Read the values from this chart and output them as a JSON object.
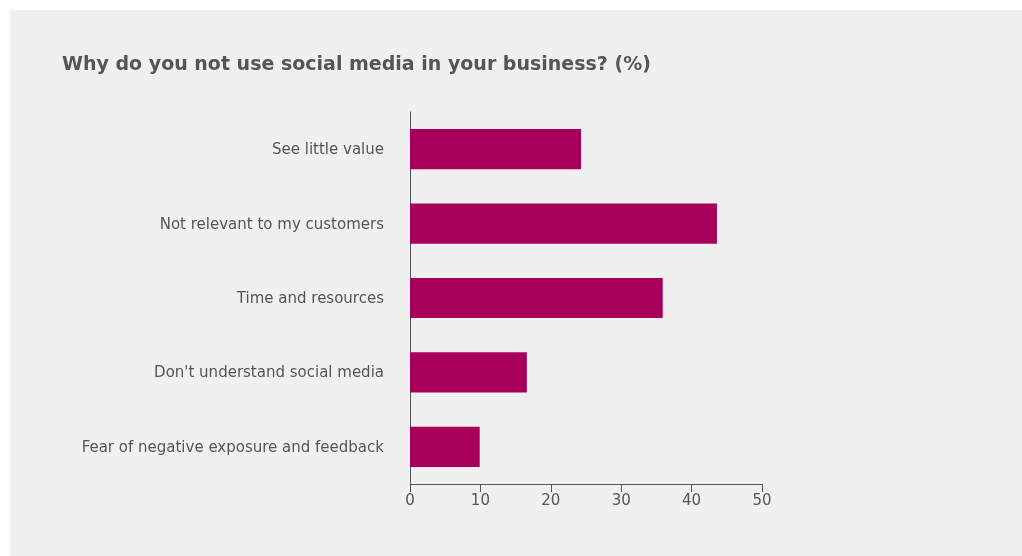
{
  "chart_data": {
    "type": "bar",
    "orientation": "horizontal",
    "title": "Why do you not use social media in your business? (%)",
    "categories": [
      "See little value",
      "Not relevant to my customers",
      "Time and resources",
      "Don't understand social media",
      "Fear of negative exposure and feedback"
    ],
    "values": [
      24.3,
      43.6,
      35.9,
      16.6,
      9.9
    ],
    "color": "#a8005a",
    "xlim": [
      0,
      50
    ],
    "xticks": [
      0,
      10,
      20,
      30,
      40,
      50
    ],
    "grid": false
  }
}
